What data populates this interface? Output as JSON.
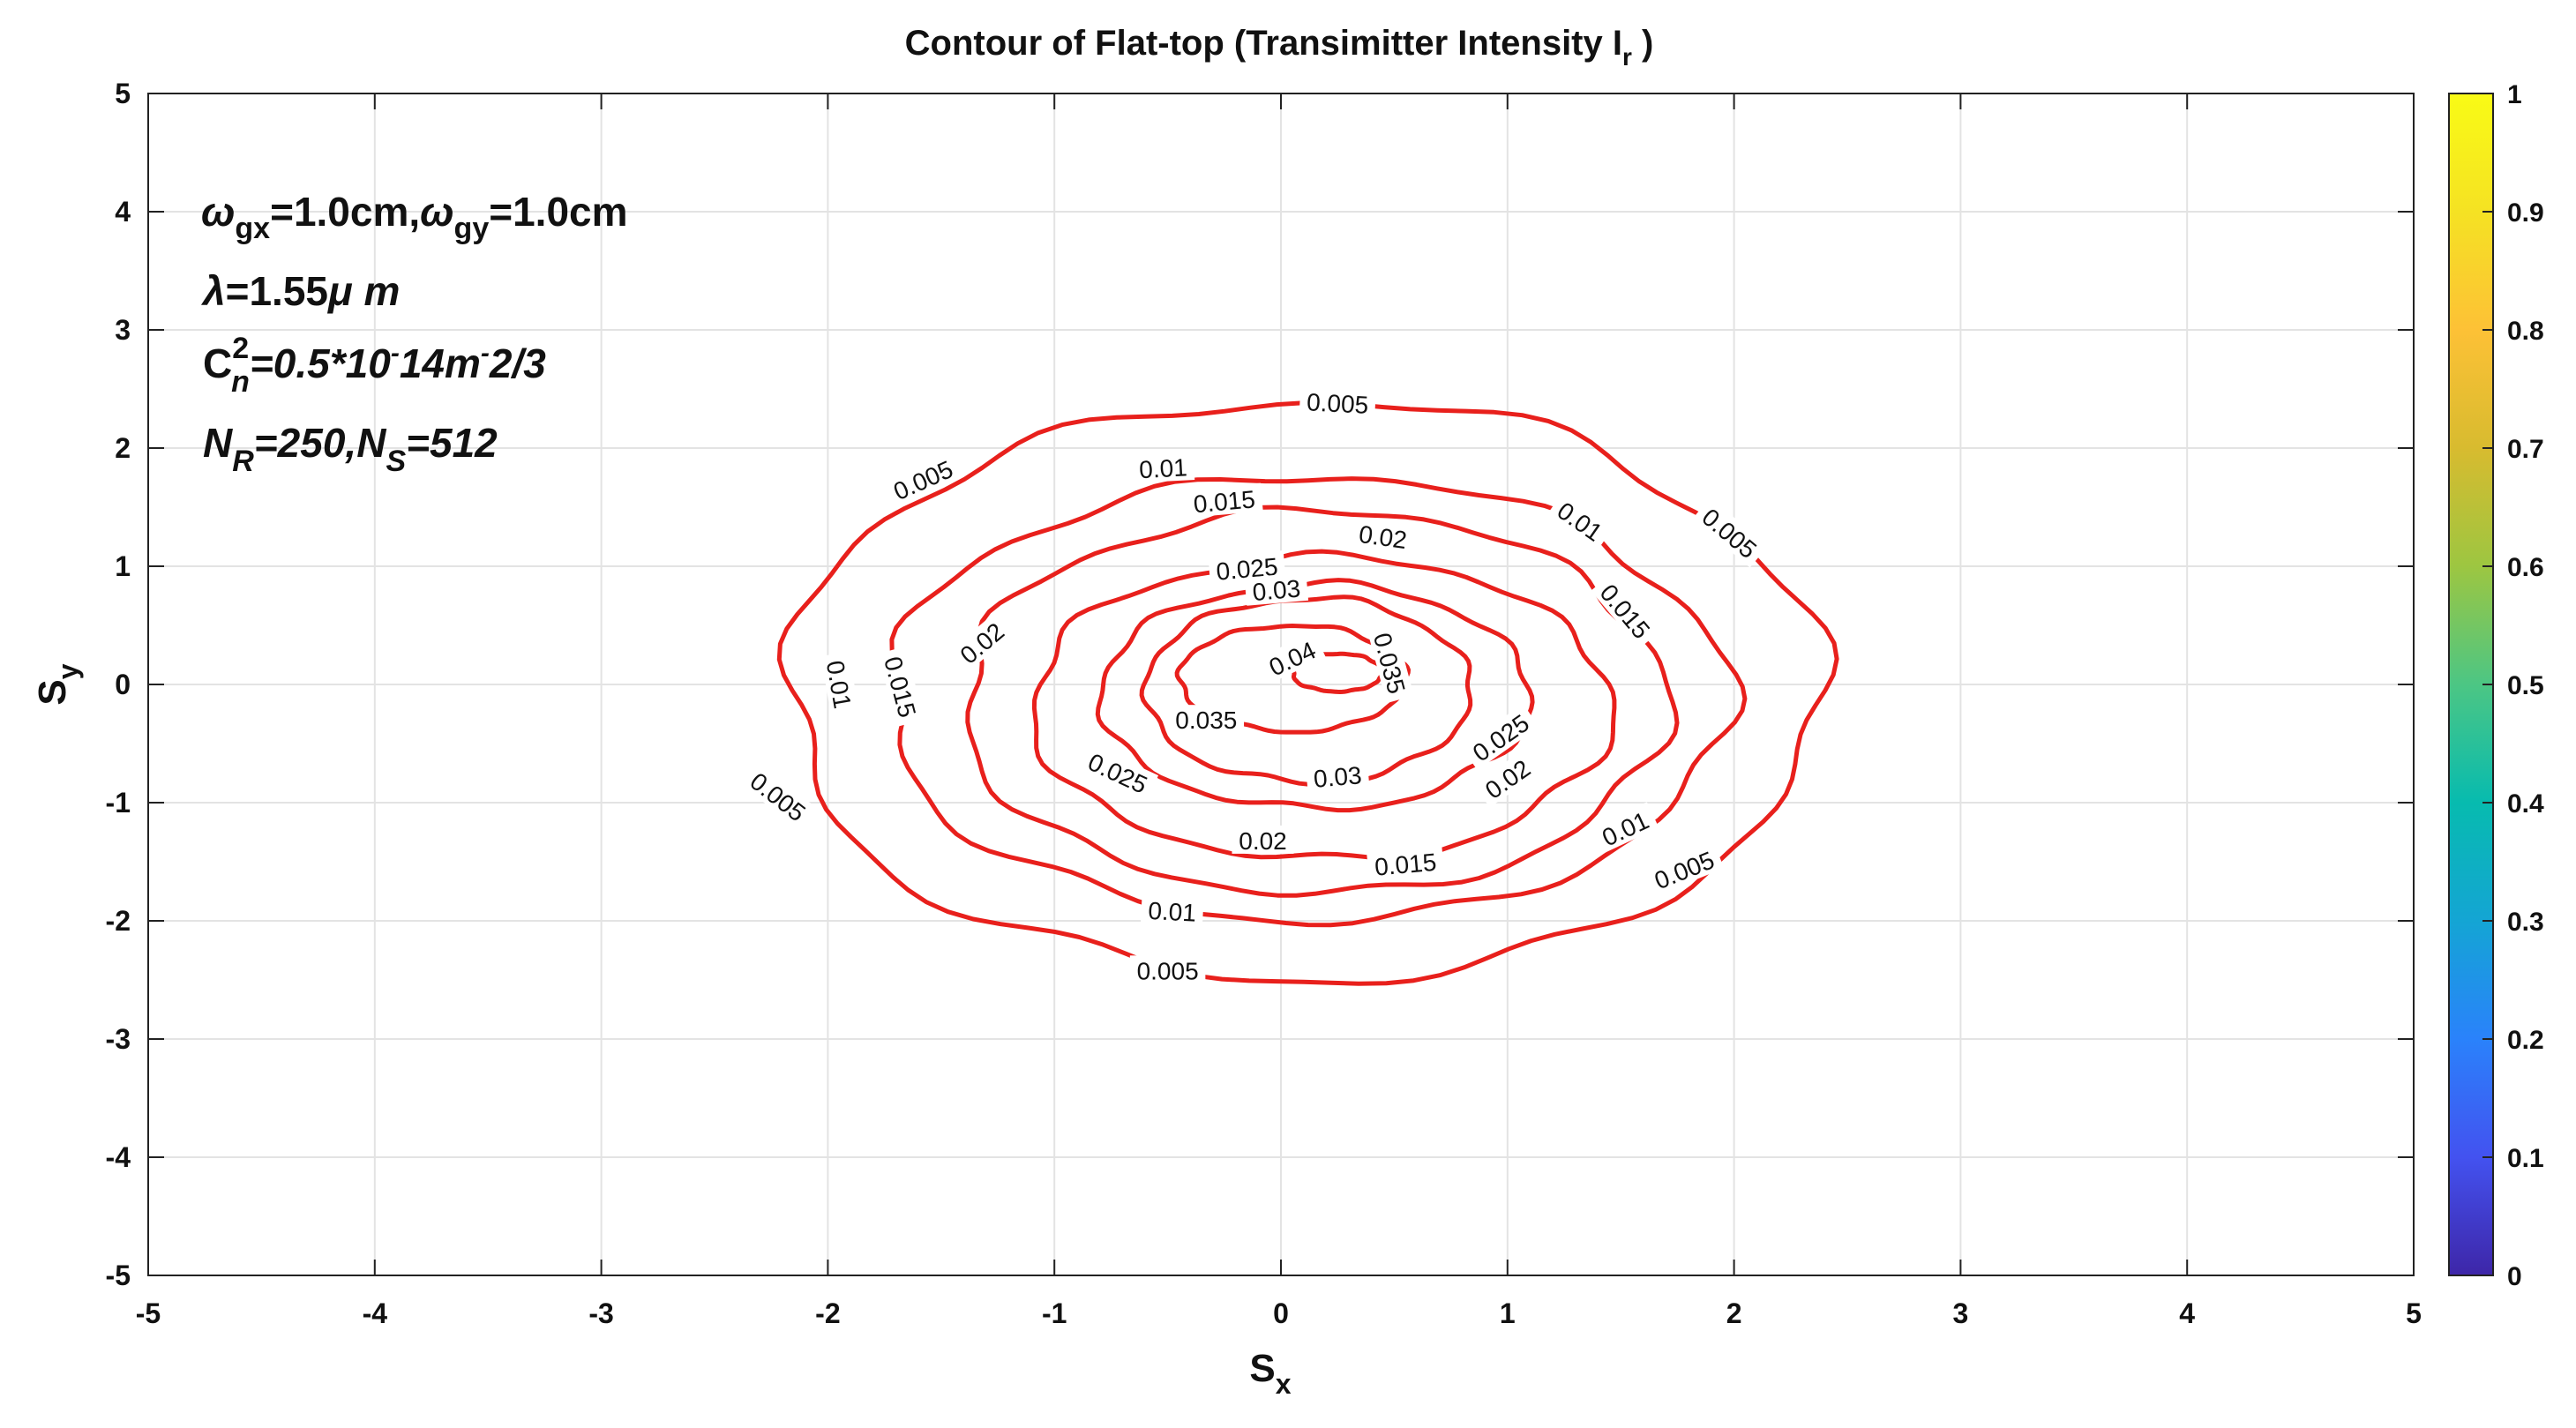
{
  "chart_data": {
    "type": "contour",
    "title_main": "Contour of Flat-top (Transimitter Intensity I",
    "title_sub": "r",
    "title_close": " )",
    "xlabel_main": "S",
    "xlabel_sub": "x",
    "ylabel_main": "S",
    "ylabel_sub": "y",
    "xlim": [
      -5,
      5
    ],
    "ylim": [
      -5,
      5
    ],
    "xticks": [
      "-5",
      "-4",
      "-3",
      "-2",
      "-1",
      "0",
      "1",
      "2",
      "3",
      "4",
      "5"
    ],
    "yticks": [
      "-5",
      "-4",
      "-3",
      "-2",
      "-1",
      "0",
      "1",
      "2",
      "3",
      "4",
      "5"
    ],
    "grid": true,
    "line_color": "#e8201c",
    "colorbar": {
      "range": [
        0,
        1
      ],
      "ticks": [
        "0",
        "0.1",
        "0.2",
        "0.3",
        "0.4",
        "0.5",
        "0.6",
        "0.7",
        "0.8",
        "0.9",
        "1"
      ],
      "colors": [
        "#3e26a8",
        "#4352f0",
        "#2a82fb",
        "#14a5d4",
        "#07bbaf",
        "#4cc684",
        "#9dc641",
        "#d8bb2f",
        "#fdc136",
        "#f5e223",
        "#f9fb15"
      ]
    },
    "annotations": {
      "line1": {
        "w1": "ω",
        "s1": "gx",
        "v1": "=1.0cm,",
        "w2": "ω",
        "s2": "gy",
        "v2": "=1.0cm"
      },
      "line2": {
        "lam": "λ",
        "v": "=1.55",
        "mu": "μ",
        "m": " m"
      },
      "line3": {
        "c": "C",
        "sup": "2",
        "sub": "n",
        "v": "=0.5*10",
        "e1": "-",
        "v2": "14m",
        "e2": "-",
        "v3": "2/3"
      },
      "line4": {
        "n1": "N",
        "s1": "R",
        "v1": "=250,",
        "n2": "N",
        "s2": "S",
        "v2": "=512"
      }
    },
    "levels": [
      {
        "level": "0.005",
        "cx": 0.1,
        "cy": -0.05,
        "rx": 2.28,
        "ry": 2.45,
        "labels": [
          {
            "text": "0.005",
            "x": 0.25,
            "y": 2.38,
            "angle": 3
          },
          {
            "text": "0.005",
            "x": -1.58,
            "y": 1.73,
            "angle": -24
          },
          {
            "text": "0.005",
            "x": 1.98,
            "y": 1.28,
            "angle": 40
          },
          {
            "text": "0.005",
            "x": -2.22,
            "y": -0.95,
            "angle": 38
          },
          {
            "text": "0.005",
            "x": 1.78,
            "y": -1.57,
            "angle": -22
          },
          {
            "text": "0.005",
            "x": -0.5,
            "y": -2.42,
            "angle": 0
          }
        ]
      },
      {
        "level": "0.01",
        "cx": 0.12,
        "cy": -0.12,
        "rx": 1.85,
        "ry": 1.88,
        "labels": [
          {
            "text": "0.01",
            "x": -0.52,
            "y": 1.83,
            "angle": -3
          },
          {
            "text": "0.01",
            "x": 1.32,
            "y": 1.38,
            "angle": 35
          },
          {
            "text": "0.01",
            "x": -1.95,
            "y": 0.0,
            "angle": 80
          },
          {
            "text": "0.01",
            "x": 1.52,
            "y": -1.22,
            "angle": -25
          },
          {
            "text": "0.01",
            "x": -0.48,
            "y": -1.92,
            "angle": 3
          }
        ]
      },
      {
        "level": "0.015",
        "cx": 0.15,
        "cy": -0.15,
        "rx": 1.55,
        "ry": 1.62,
        "labels": [
          {
            "text": "0.015",
            "x": -0.25,
            "y": 1.55,
            "angle": -5
          },
          {
            "text": "0.015",
            "x": 1.52,
            "y": 0.62,
            "angle": 50
          },
          {
            "text": "0.015",
            "x": -1.68,
            "y": -0.02,
            "angle": 75
          },
          {
            "text": "0.015",
            "x": 0.55,
            "y": -1.52,
            "angle": -5
          }
        ]
      },
      {
        "level": "0.02",
        "cx": 0.18,
        "cy": -0.2,
        "rx": 1.28,
        "ry": 1.28,
        "labels": [
          {
            "text": "0.02",
            "x": 0.45,
            "y": 1.25,
            "angle": 8
          },
          {
            "text": "0.02",
            "x": -1.32,
            "y": 0.35,
            "angle": -40
          },
          {
            "text": "0.02",
            "x": 1.0,
            "y": -0.8,
            "angle": -35
          },
          {
            "text": "0.02",
            "x": -0.08,
            "y": -1.32,
            "angle": 0
          }
        ]
      },
      {
        "level": "0.025",
        "cx": 0.15,
        "cy": -0.1,
        "rx": 0.95,
        "ry": 0.95,
        "labels": [
          {
            "text": "0.025",
            "x": -0.15,
            "y": 0.98,
            "angle": -5
          },
          {
            "text": "0.025",
            "x": 0.97,
            "y": -0.45,
            "angle": -35
          },
          {
            "text": "0.025",
            "x": -0.72,
            "y": -0.75,
            "angle": 25
          }
        ]
      },
      {
        "level": "0.03",
        "cx": 0.12,
        "cy": -0.05,
        "rx": 0.72,
        "ry": 0.78,
        "labels": [
          {
            "text": "0.03",
            "x": -0.02,
            "y": 0.8,
            "angle": -5
          },
          {
            "text": "0.03",
            "x": 0.25,
            "y": -0.78,
            "angle": -5
          }
        ]
      },
      {
        "level": "0.035",
        "cx": 0.05,
        "cy": 0.05,
        "rx": 0.5,
        "ry": 0.45,
        "labels": [
          {
            "text": "0.035",
            "x": 0.48,
            "y": 0.18,
            "angle": 75
          },
          {
            "text": "0.035",
            "x": -0.33,
            "y": -0.3,
            "angle": 0
          }
        ]
      },
      {
        "level": "0.04",
        "cx": 0.25,
        "cy": 0.1,
        "rx": 0.2,
        "ry": 0.16,
        "labels": [
          {
            "text": "0.04",
            "x": 0.05,
            "y": 0.22,
            "angle": -25
          }
        ]
      }
    ]
  }
}
